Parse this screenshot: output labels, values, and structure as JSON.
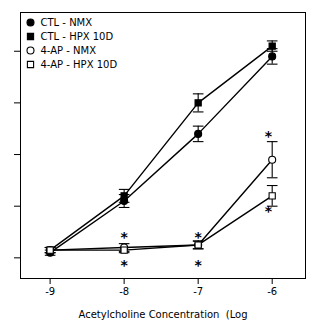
{
  "chart_data": {
    "type": "line",
    "xlabel": "Acetylcholine Concentration  (Log",
    "x": [
      -9.0,
      -8.0,
      -7.0,
      -6.0
    ],
    "series": [
      {
        "name": "CTL - NMX",
        "values": [
          2,
          22,
          48,
          78
        ],
        "yerr": [
          1,
          2.5,
          3,
          3
        ],
        "color": "black",
        "marker": "circle",
        "line_style": "solid"
      },
      {
        "name": "CTL - HPX 10D",
        "values": [
          3,
          24,
          60,
          82
        ],
        "yerr": [
          1,
          2.5,
          3.5,
          2
        ],
        "color": "black",
        "marker": "square",
        "line_style": "solid"
      },
      {
        "name": "4-AP - NMX",
        "values": [
          3,
          4,
          5,
          38
        ],
        "yerr": [
          1,
          1.5,
          1.5,
          7
        ],
        "color": "black",
        "marker": "open-circle",
        "line_style": "solid"
      },
      {
        "name": "4-AP - HPX 10D",
        "values": [
          3,
          3,
          5,
          24
        ],
        "yerr": [
          1,
          1,
          1.5,
          4
        ],
        "color": "black",
        "marker": "open-square",
        "line_style": "solid"
      }
    ],
    "annotations": [
      {
        "x": -8.0,
        "y": 8,
        "text": "*"
      },
      {
        "x": -8.0,
        "y": -3,
        "text": "*"
      },
      {
        "x": -7.0,
        "y": 8,
        "text": "*"
      },
      {
        "x": -7.0,
        "y": -3,
        "text": "*"
      },
      {
        "x": -6.05,
        "y": 47,
        "text": "*"
      },
      {
        "x": -6.05,
        "y": 18,
        "text": "*"
      }
    ],
    "xlim": [
      -9.4,
      -5.55
    ],
    "ylim": [
      -8,
      95
    ],
    "xticks": [
      -9,
      -8,
      -7,
      -6
    ],
    "yticks": [
      0,
      20,
      40,
      60,
      80
    ],
    "tick_labels": "x",
    "legend": "upper left",
    "grid": false
  }
}
